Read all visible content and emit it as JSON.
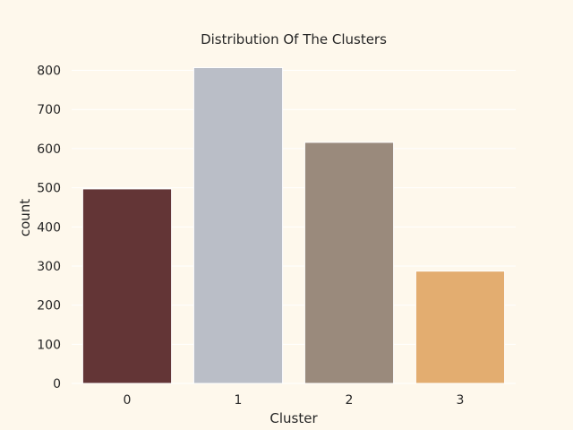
{
  "chart_data": {
    "type": "bar",
    "title": "Distribution Of The Clusters",
    "xlabel": "Cluster",
    "ylabel": "count",
    "categories": [
      "0",
      "1",
      "2",
      "3"
    ],
    "values": [
      497,
      807,
      616,
      287
    ],
    "yticks": [
      0,
      100,
      200,
      300,
      400,
      500,
      600,
      700,
      800
    ],
    "ylim": [
      0,
      847
    ],
    "grid": true,
    "legend": "none",
    "colors": {
      "background": "#FEF8EC",
      "plot_background": "#FEF8EC",
      "grid": "#FFFFFF",
      "bars": [
        "#633536",
        "#BABEC7",
        "#9A8A7C",
        "#E3AD70"
      ]
    }
  }
}
